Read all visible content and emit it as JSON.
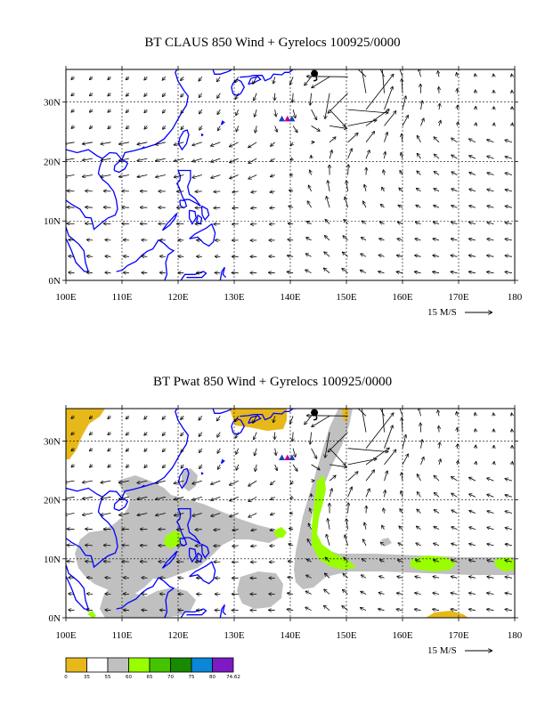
{
  "panels": [
    {
      "title": "BT CLAUS 850 Wind + Gyrelocs 100925/0000",
      "field": "none"
    },
    {
      "title": "BT Pwat 850 Wind + Gyrelocs 100925/0000",
      "field": "pwat"
    }
  ],
  "axes": {
    "lon_labels": [
      "100E",
      "110E",
      "120E",
      "130E",
      "140E",
      "150E",
      "160E",
      "170E",
      "180"
    ],
    "lat_labels": [
      "0N",
      "10N",
      "20N",
      "30N"
    ],
    "lon_range": [
      100,
      180
    ],
    "lat_range": [
      0,
      35.5
    ]
  },
  "scale_label": "15 M/S",
  "legend": {
    "ticks": [
      "0",
      "35",
      "55",
      "60",
      "65",
      "70",
      "75",
      "80",
      "74.62"
    ],
    "colors": [
      "#e6b81a",
      "#ffffff",
      "#c0c0c0",
      "#99ff00",
      "#44c400",
      "#188a00",
      "#0b86d8",
      "#7d1ac4"
    ]
  },
  "colors": {
    "coast": "#0000ff",
    "grid": "#000000",
    "gray_field": "#c0c0c0",
    "green_field": "#99ff00",
    "gold_field": "#e6b81a",
    "gyre_markers": [
      "#c00090",
      "#1a40c0"
    ]
  }
}
